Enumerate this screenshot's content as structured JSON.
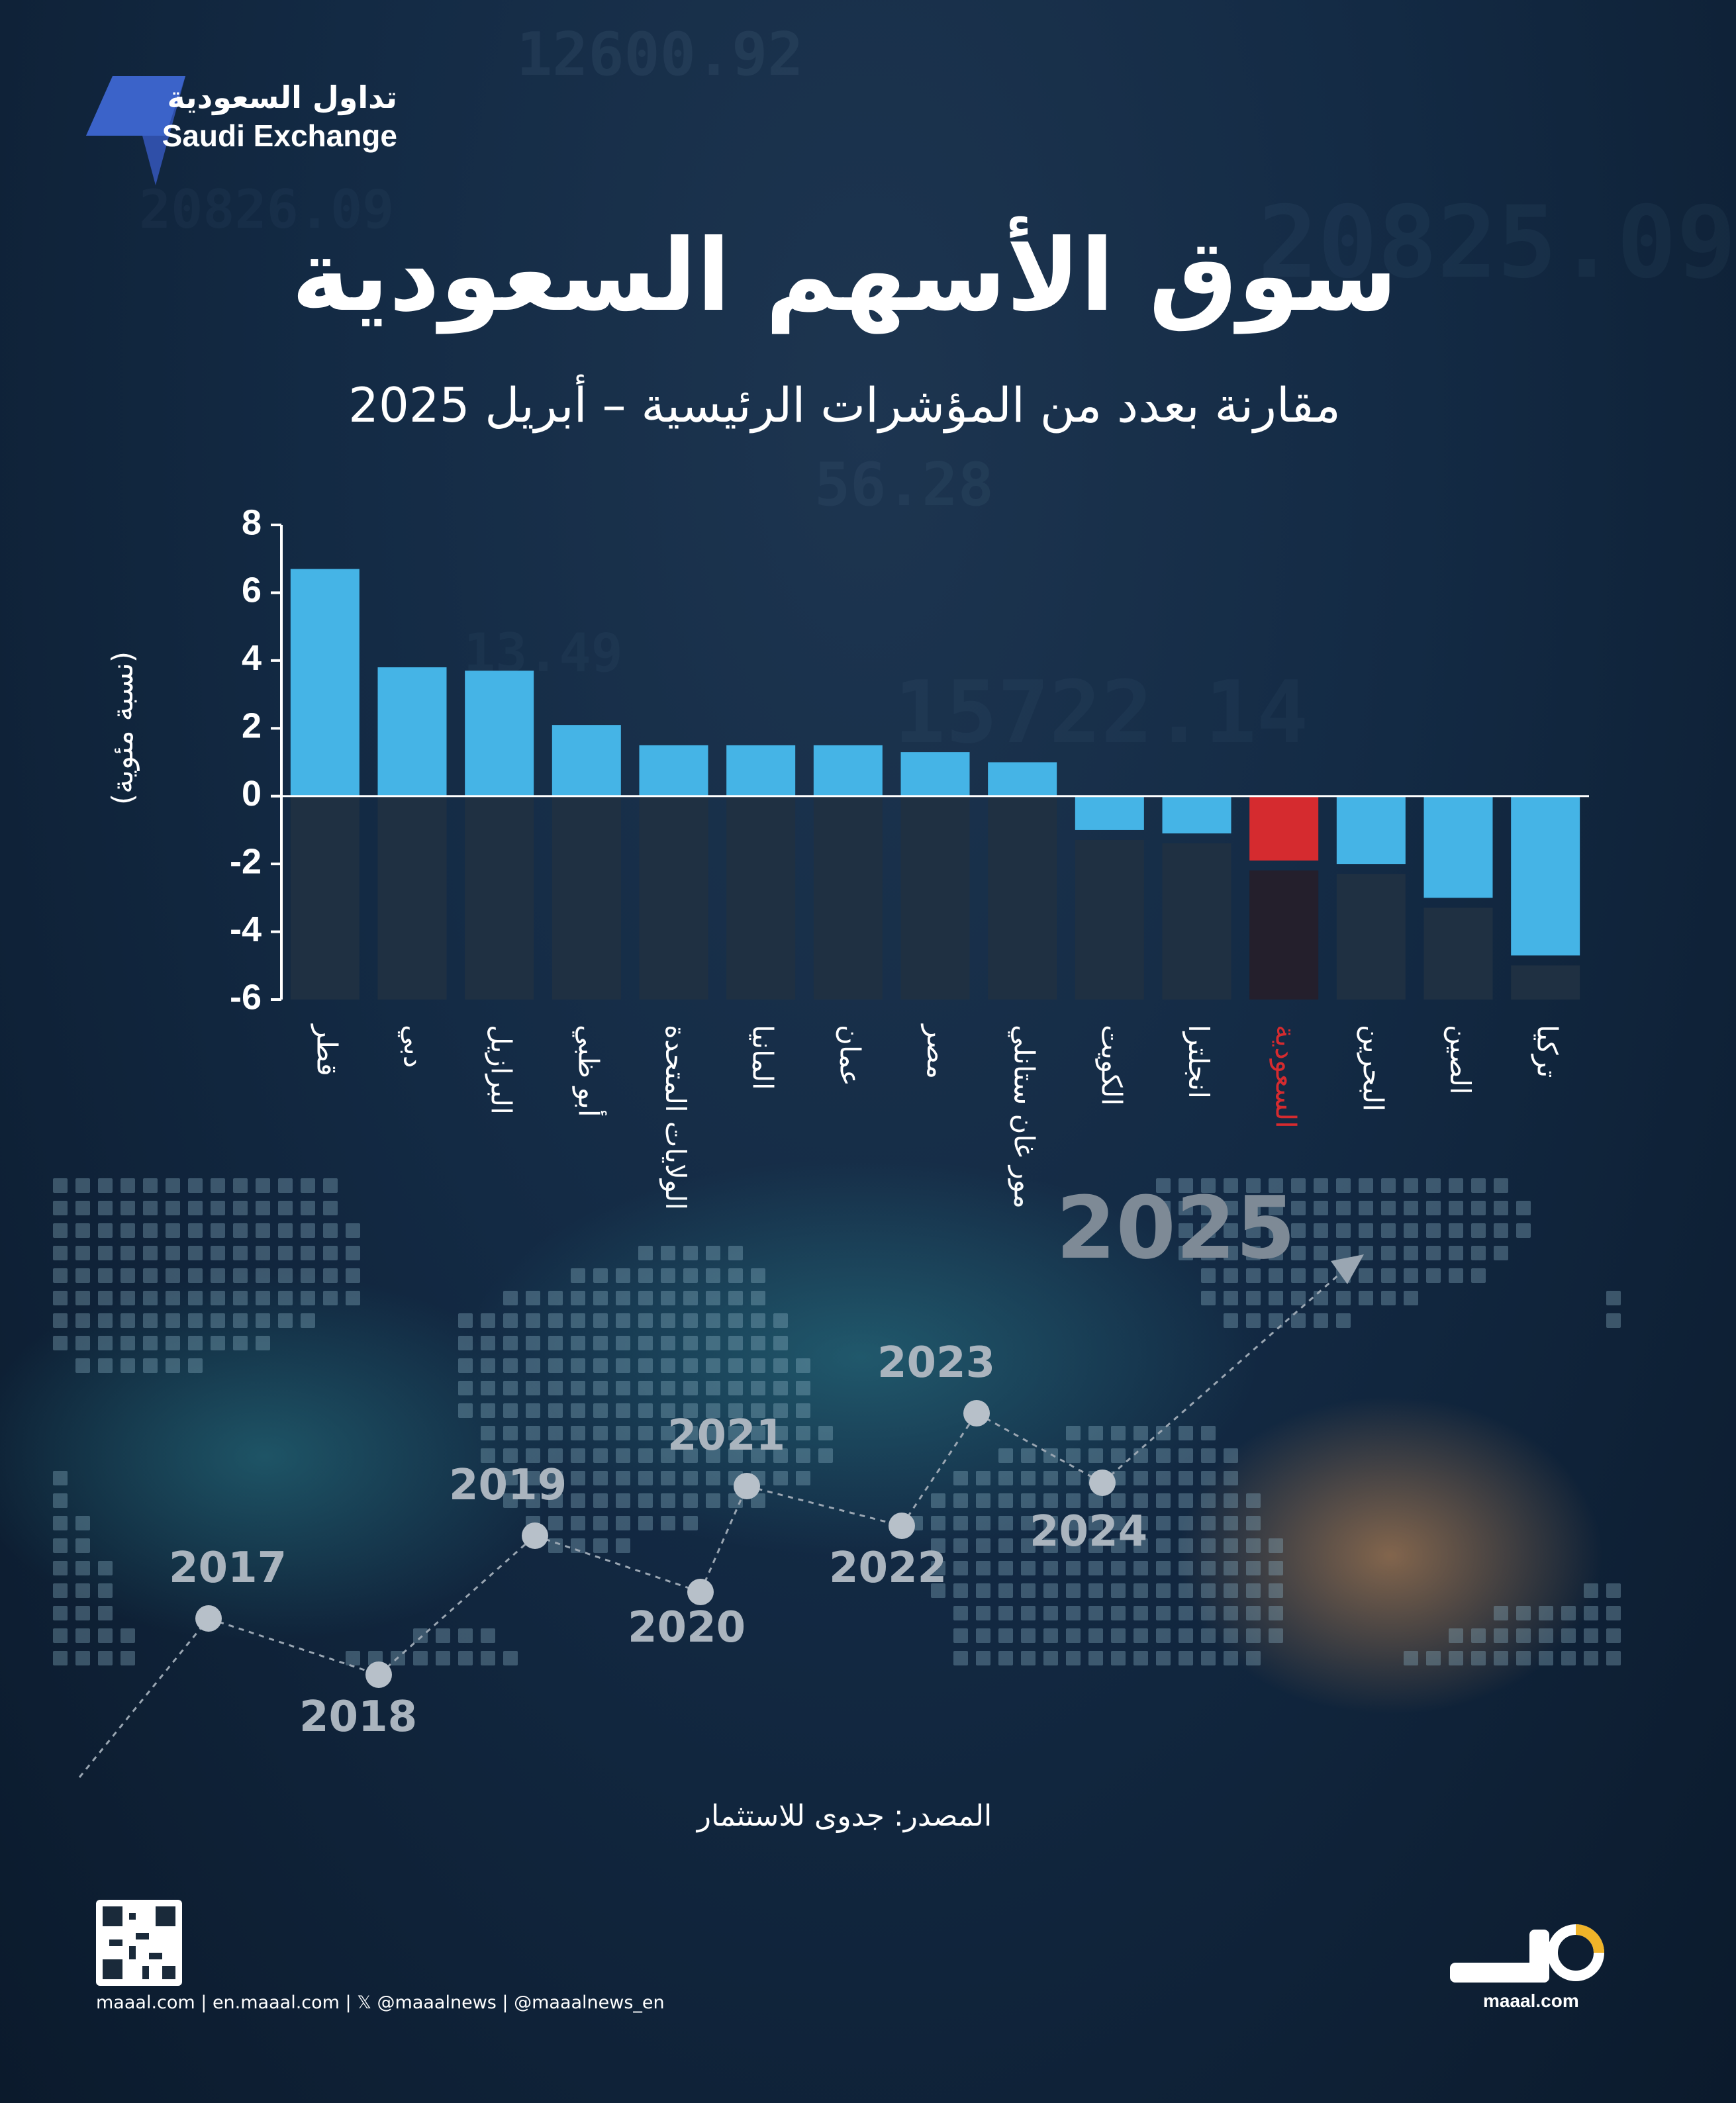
{
  "logo": {
    "arabic": "تداول السعودية",
    "english": "Saudi Exchange"
  },
  "background_numbers": [
    "12600.92",
    "20825.09",
    "56.28",
    "15722.14",
    "13.49",
    "20826.09"
  ],
  "title": "سوق الأسهم السعودية",
  "subtitle": "مقارنة بعدد من المؤشرات الرئيسية – أبريل 2025",
  "chart_data": {
    "type": "bar",
    "ylabel": "(نسبة مئوية)",
    "ylim": [
      -6,
      8
    ],
    "yticks": [
      8,
      6,
      4,
      2,
      0,
      -2,
      -4,
      -6
    ],
    "categories": [
      "قطر",
      "دبي",
      "البرازيل",
      "أبو ظبي",
      "الولايات المتحدة",
      "المانيا",
      "عمان",
      "مصر",
      "مور غان ستانلي",
      "الكويت",
      "انجلترا",
      "السعودية",
      "البحرين",
      "الصين",
      "تركيا"
    ],
    "values": [
      6.7,
      3.8,
      3.7,
      2.1,
      1.5,
      1.5,
      1.5,
      1.3,
      1.0,
      -1.0,
      -1.1,
      -1.9,
      -2.0,
      -3.0,
      -4.7
    ],
    "highlight": "السعودية",
    "colors": {
      "bar": "#45b4e6",
      "highlight": "#d52b2f",
      "column_background": "#1f3042",
      "highlight_column_background": "#241f2c"
    }
  },
  "timeline": {
    "years": [
      "2017",
      "2018",
      "2019",
      "2020",
      "2021",
      "2022",
      "2023",
      "2024"
    ],
    "target": "2025"
  },
  "source": "المصدر: جدوى للاستثمار",
  "footer": "maaal.com  |  en.maaal.com  |  𝕏 @maaalnews | @maaalnews_en",
  "brand": {
    "site": "maaal.com"
  }
}
